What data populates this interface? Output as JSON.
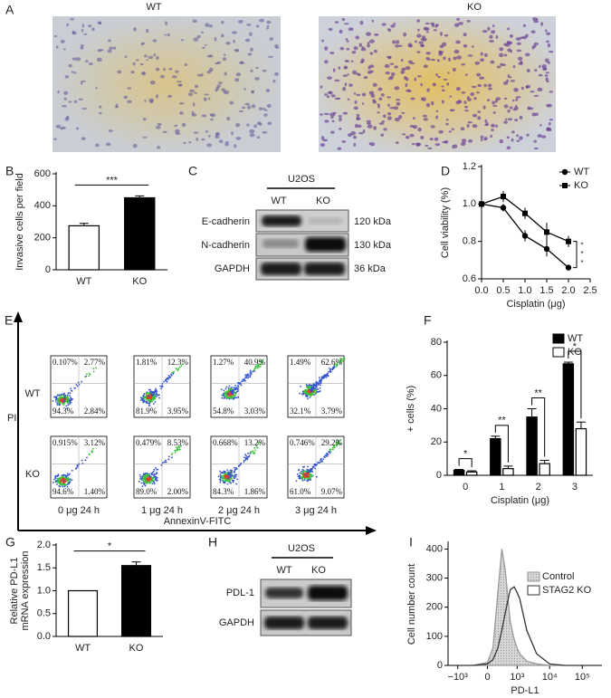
{
  "panel_a": {
    "panel_label": "A",
    "images": [
      "WT",
      "KO"
    ]
  },
  "panel_c": {
    "panel_label": "C",
    "cell_line": "U2OS",
    "lanes": [
      "WT",
      "KO"
    ],
    "rows": [
      {
        "protein": "E-cadherin",
        "size": "120 kDa"
      },
      {
        "protein": "N-cadherin",
        "size": "130 kDa"
      },
      {
        "protein": "GAPDH",
        "size": "36 kDa"
      }
    ]
  },
  "panel_e": {
    "panel_label": "E",
    "y_axis_label": "PI",
    "x_axis_label": "AnnexinV-FITC",
    "rows": [
      "WT",
      "KO"
    ],
    "columns": [
      "0 μg 24 h",
      "1 μg 24 h",
      "2 μg 24 h",
      "3 μg 24 h"
    ],
    "quadrants": [
      [
        [
          "0.107%",
          "2.77%",
          "94.3%",
          "2.84%"
        ],
        [
          "1.81%",
          "12.3%",
          "81.9%",
          "3.95%"
        ],
        [
          "1.27%",
          "40.9%",
          "54.8%",
          "3.03%"
        ],
        [
          "1.49%",
          "62.6%",
          "32.1%",
          "3.79%"
        ]
      ],
      [
        [
          "0.915%",
          "3.12%",
          "94.6%",
          "1.40%"
        ],
        [
          "0.479%",
          "8.53%",
          "89.0%",
          "2.00%"
        ],
        [
          "0.668%",
          "13.2%",
          "84.3%",
          "1.86%"
        ],
        [
          "0.746%",
          "29.2%",
          "61.0%",
          "9.07%"
        ]
      ]
    ]
  },
  "panel_h": {
    "panel_label": "H",
    "cell_line": "U2OS",
    "lanes": [
      "WT",
      "KO"
    ],
    "rows": [
      {
        "protein": "PDL-1"
      },
      {
        "protein": "GAPDH"
      }
    ]
  },
  "chart_data": [
    {
      "type": "bar",
      "panel_label": "B",
      "y_label": "Invasive cells per field",
      "categories": [
        "WT",
        "KO"
      ],
      "values": [
        275,
        450
      ],
      "errors": [
        15,
        12
      ],
      "colors": [
        "#ffffff",
        "#000000"
      ],
      "ylim": [
        0,
        600
      ],
      "yticks": [
        0,
        200,
        400,
        600
      ],
      "significance": "***"
    },
    {
      "type": "line",
      "panel_label": "D",
      "x_label": "Cisplatin (μg)",
      "y_label": "Cell viability (%)",
      "x": [
        0,
        0.5,
        1,
        1.5,
        2
      ],
      "series": [
        {
          "name": "WT",
          "marker": "circle",
          "color": "#000000",
          "values": [
            1.0,
            0.98,
            0.83,
            0.76,
            0.66
          ],
          "errors": [
            0.02,
            0.02,
            0.03,
            0.04,
            0.01
          ]
        },
        {
          "name": "KO",
          "marker": "square",
          "color": "#000000",
          "values": [
            1.0,
            1.04,
            0.95,
            0.85,
            0.8
          ],
          "errors": [
            0.02,
            0.03,
            0.03,
            0.05,
            0.03
          ]
        }
      ],
      "xlim": [
        0,
        2.5
      ],
      "xticks": [
        {
          "value": 0,
          "label": "0.0"
        },
        0.5,
        {
          "value": 1,
          "label": "1.0"
        },
        1.5,
        {
          "value": 2,
          "label": "2.0"
        },
        2.5
      ],
      "ylim": [
        0.6,
        1.2
      ],
      "yticks": [
        0.6,
        0.8,
        {
          "value": 1,
          "label": "1.0"
        },
        1.2
      ],
      "legend": "upper right",
      "significance": [
        "*",
        "*",
        "*"
      ]
    },
    {
      "type": "grouped_bar",
      "panel_label": "F",
      "x_label": "Cisplatin (μg)",
      "y_label": "+ cells (%)",
      "categories": [
        "0",
        "1",
        "2",
        "3"
      ],
      "series": [
        {
          "name": "WT",
          "color": "#000000",
          "values": [
            3,
            22,
            35,
            67
          ],
          "errors": [
            0.5,
            1.5,
            5,
            1
          ]
        },
        {
          "name": "KO",
          "color": "#ffffff",
          "values": [
            2,
            4,
            7,
            28
          ],
          "errors": [
            0.7,
            1.5,
            2,
            4
          ]
        }
      ],
      "ylim": [
        0,
        80
      ],
      "yticks": [
        0,
        20,
        40,
        60,
        80
      ],
      "legend": "upper right",
      "significance": [
        "*",
        "**",
        "**",
        "*"
      ]
    },
    {
      "type": "bar",
      "panel_label": "G",
      "y_label": [
        "Relative PD-L1",
        "mRNA expression"
      ],
      "categories": [
        "WT",
        "KO"
      ],
      "values": [
        1.0,
        1.55
      ],
      "errors": [
        0,
        0.08
      ],
      "colors": [
        "#ffffff",
        "#000000"
      ],
      "ylim": [
        0,
        2
      ],
      "yticks": [
        {
          "value": 0,
          "label": "0.0"
        },
        0.5,
        {
          "value": 1,
          "label": "1.0"
        },
        1.5,
        {
          "value": 2,
          "label": "2.0"
        }
      ],
      "significance": "*"
    },
    {
      "type": "area",
      "panel_label": "I",
      "x_label": "PD-L1",
      "y_label": "Cell number count",
      "xscale": "biexponential",
      "x": [
        -300,
        0,
        100,
        200,
        300,
        400,
        600,
        800,
        1000,
        1200,
        2000,
        4000,
        10000,
        30000
      ],
      "series": [
        {
          "name": "Control",
          "color": "#c4c4c4",
          "fill": true,
          "values": [
            0,
            10,
            60,
            250,
            400,
            330,
            150,
            90,
            60,
            40,
            15,
            5,
            0,
            0
          ]
        },
        {
          "name": "STAG2 KO",
          "color": "#333333",
          "fill": false,
          "values": [
            0,
            5,
            20,
            60,
            120,
            180,
            260,
            270,
            250,
            230,
            120,
            40,
            5,
            0
          ]
        }
      ],
      "xlim": [
        -2000,
        400000
      ],
      "xticks": [
        {
          "value": -1000,
          "label": "−10³"
        },
        0,
        {
          "value": 1000,
          "label": "10³"
        },
        {
          "value": 10000,
          "label": "10⁴"
        },
        {
          "value": 100000,
          "label": "10⁵"
        }
      ],
      "ylim": [
        0,
        420
      ],
      "yticks": [
        0,
        100,
        200,
        300,
        400
      ],
      "legend": "upper right"
    }
  ]
}
